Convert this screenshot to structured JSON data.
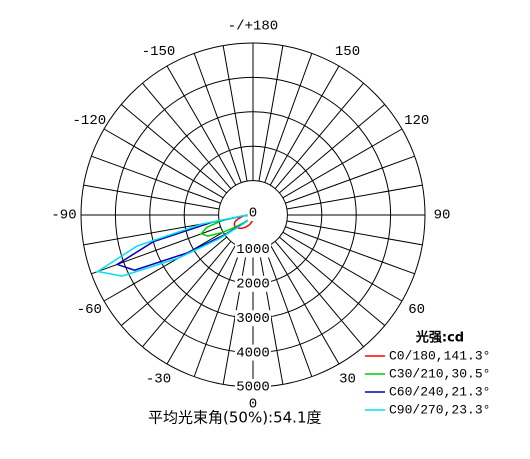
{
  "chart_data": {
    "type": "polar",
    "angle_ticks": [
      {
        "value": 180,
        "label": "-/+180"
      },
      150,
      120,
      90,
      60,
      30,
      0,
      -30,
      -60,
      -90,
      -120,
      -150
    ],
    "rticks": [
      0,
      1000,
      2000,
      3000,
      4000,
      5000
    ],
    "rlim": [
      0,
      5000
    ],
    "angles": [
      -90,
      -85,
      -80,
      -75,
      -70,
      -65,
      -60,
      -55,
      -50,
      -45,
      -40,
      -35,
      -30,
      -20,
      -10,
      0
    ],
    "series": [
      {
        "name": "C0/180,141.3°",
        "color": "#ff0000",
        "values": [
          150,
          250,
          350,
          450,
          550,
          600,
          620,
          600,
          580,
          550,
          500,
          450,
          400,
          300,
          200,
          150
        ]
      },
      {
        "name": "C30/210,30.5°",
        "color": "#00cc00",
        "values": [
          60,
          300,
          900,
          1400,
          1600,
          1450,
          1000,
          600,
          350,
          200,
          150,
          120,
          100,
          70,
          50,
          40
        ]
      },
      {
        "name": "C60/240,21.3°",
        "color": "#0000c0",
        "values": [
          40,
          250,
          1200,
          3000,
          4200,
          3800,
          2200,
          1000,
          450,
          250,
          150,
          110,
          90,
          60,
          40,
          30
        ]
      },
      {
        "name": "C90/270,23.3°",
        "color": "#00e0f0",
        "values": [
          50,
          300,
          1500,
          3500,
          4800,
          4200,
          2500,
          1200,
          500,
          250,
          150,
          100,
          80,
          50,
          30,
          20
        ]
      }
    ],
    "legend_title": "光强:cd",
    "footnote": "平均光束角(50%):54.1度"
  }
}
